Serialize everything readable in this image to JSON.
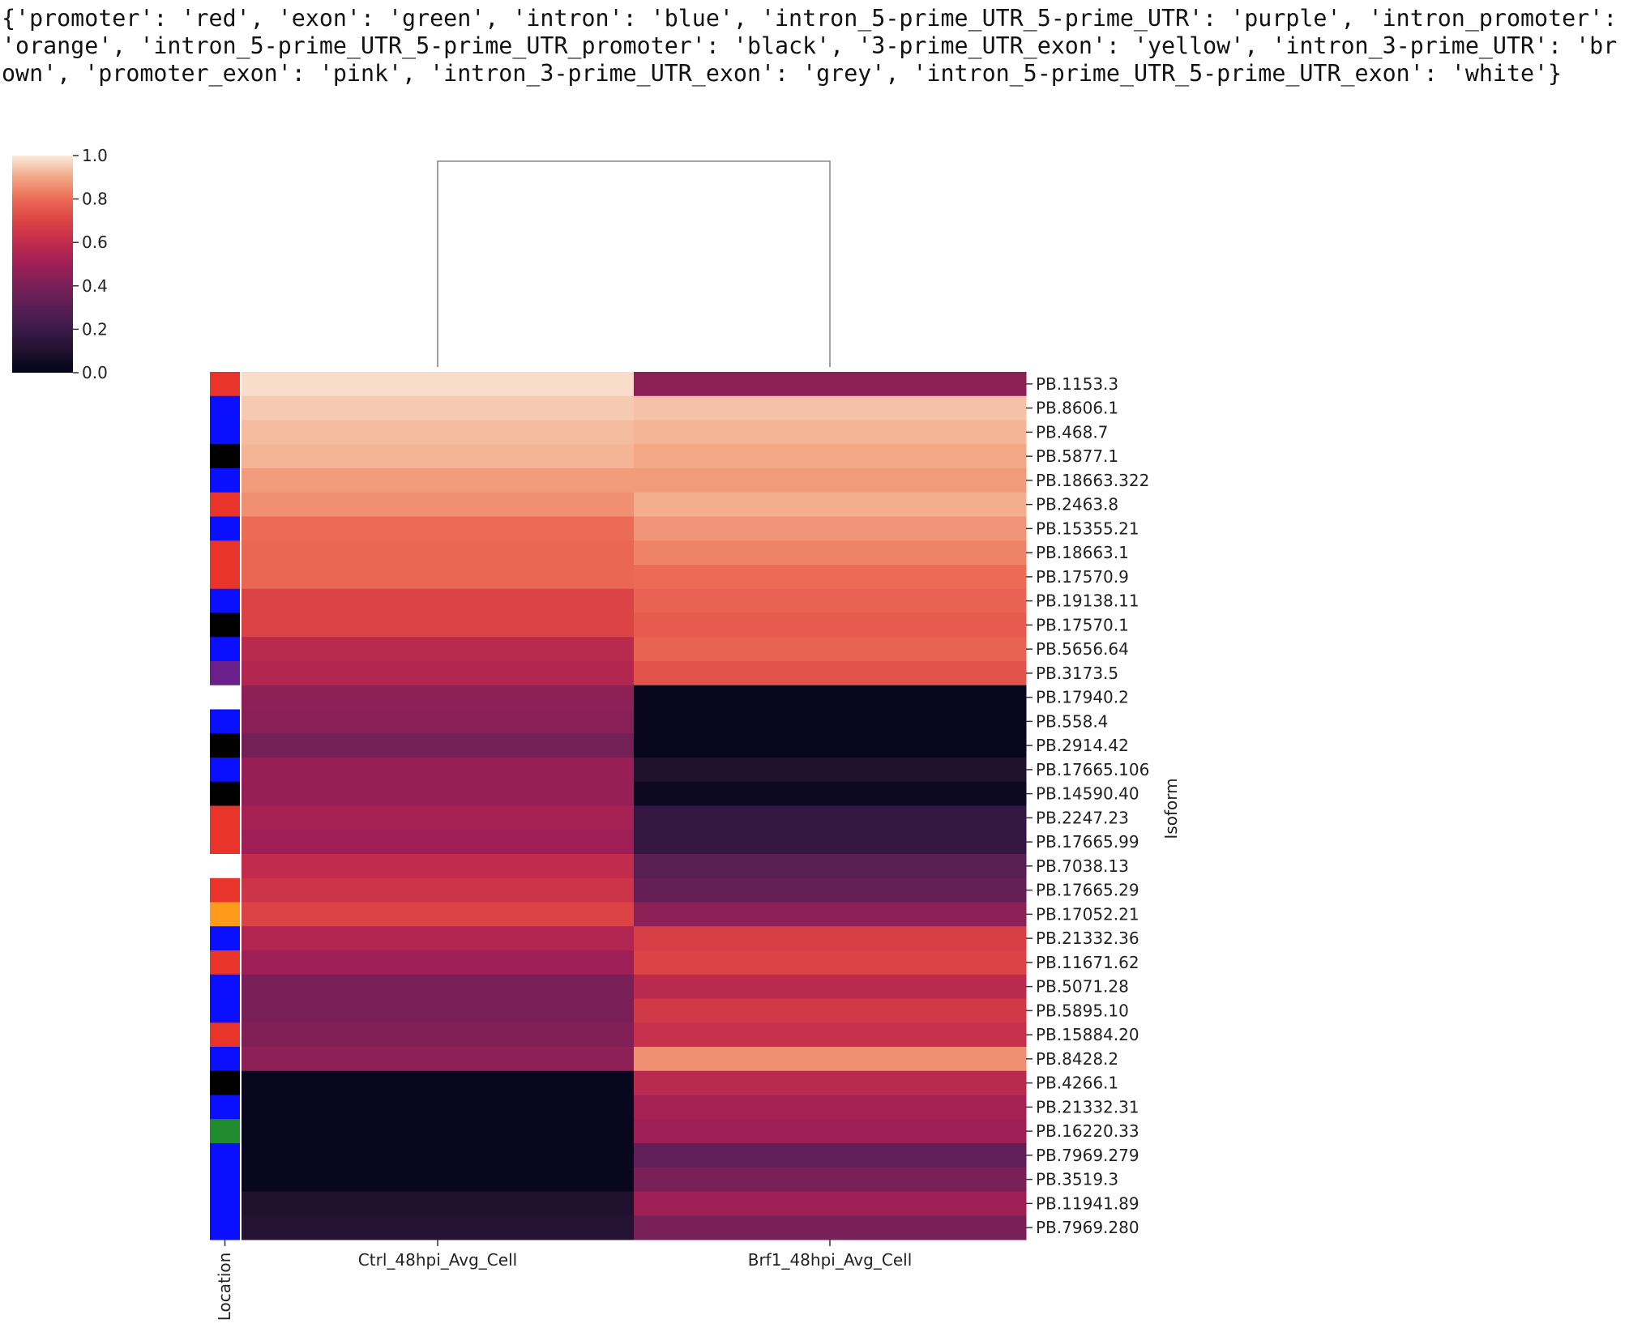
{
  "header_text": "{'promoter': 'red', 'exon': 'green', 'intron': 'blue', 'intron_5-prime_UTR_5-prime_UTR': 'purple', 'intron_promoter': 'orange', 'intron_5-prime_UTR_5-prime_UTR_promoter': 'black', '3-prime_UTR_exon': 'yellow', 'intron_3-prime_UTR': 'brown', 'promoter_exon': 'pink', 'intron_3-prime_UTR_exon': 'grey', 'intron_5-prime_UTR_5-prime_UTR_exon': 'white'}",
  "chart_data": {
    "type": "heatmap",
    "title": "",
    "xlabel": "",
    "ylabel": "Isoform",
    "row_annotation_label": "Location",
    "colormap": "rocket",
    "colorbar": {
      "range": [
        0.0,
        1.0
      ],
      "ticks": [
        "0.0",
        "0.2",
        "0.4",
        "0.6",
        "0.8",
        "1.0"
      ],
      "placement": "top-left"
    },
    "columns": [
      "Ctrl_48hpi_Avg_Cell",
      "Brf1_48hpi_Avg_Cell"
    ],
    "column_dendrogram": true,
    "location_colors": {
      "promoter": "red",
      "exon": "green",
      "intron": "blue",
      "intron_5-prime_UTR_5-prime_UTR": "purple",
      "intron_promoter": "orange",
      "intron_5-prime_UTR_5-prime_UTR_promoter": "black",
      "3-prime_UTR_exon": "yellow",
      "intron_3-prime_UTR": "brown",
      "promoter_exon": "pink",
      "intron_3-prime_UTR_exon": "grey",
      "intron_5-prime_UTR_5-prime_UTR_exon": "white"
    },
    "row_labels": [
      "PB.1153.3",
      "PB.8606.1",
      "PB.468.7",
      "PB.5877.1",
      "PB.18663.322",
      "PB.2463.8",
      "PB.15355.21",
      "PB.18663.1",
      "PB.17570.9",
      "PB.19138.11",
      "PB.17570.1",
      "PB.5656.64",
      "PB.3173.5",
      "PB.17940.2",
      "PB.558.4",
      "PB.2914.42",
      "PB.17665.106",
      "PB.14590.40",
      "PB.2247.23",
      "PB.17665.99",
      "PB.7038.13",
      "PB.17665.29",
      "PB.17052.21",
      "PB.21332.36",
      "PB.11671.62",
      "PB.5071.28",
      "PB.5895.10",
      "PB.15884.20",
      "PB.8428.2",
      "PB.4266.1",
      "PB.21332.31",
      "PB.16220.33",
      "PB.7969.279",
      "PB.3519.3",
      "PB.11941.89",
      "PB.7969.280"
    ],
    "row_location": [
      "promoter",
      "intron",
      "intron",
      "intron_5-prime_UTR_5-prime_UTR_promoter",
      "intron",
      "promoter",
      "intron",
      "promoter",
      "promoter",
      "intron",
      "intron_5-prime_UTR_5-prime_UTR_promoter",
      "intron",
      "intron_5-prime_UTR_5-prime_UTR",
      "intron_5-prime_UTR_5-prime_UTR_exon",
      "intron",
      "intron_5-prime_UTR_5-prime_UTR_promoter",
      "intron",
      "intron_5-prime_UTR_5-prime_UTR_promoter",
      "promoter",
      "promoter",
      "intron_5-prime_UTR_5-prime_UTR_exon",
      "promoter",
      "intron_promoter",
      "intron",
      "promoter",
      "intron",
      "intron",
      "promoter",
      "intron",
      "intron_5-prime_UTR_5-prime_UTR_promoter",
      "intron",
      "exon",
      "intron",
      "intron",
      "intron",
      "intron"
    ],
    "values": [
      [
        0.98,
        0.45
      ],
      [
        0.95,
        0.94
      ],
      [
        0.93,
        0.92
      ],
      [
        0.92,
        0.9
      ],
      [
        0.88,
        0.88
      ],
      [
        0.86,
        0.91
      ],
      [
        0.8,
        0.87
      ],
      [
        0.79,
        0.84
      ],
      [
        0.79,
        0.8
      ],
      [
        0.7,
        0.78
      ],
      [
        0.7,
        0.76
      ],
      [
        0.58,
        0.78
      ],
      [
        0.56,
        0.74
      ],
      [
        0.45,
        0.02
      ],
      [
        0.44,
        0.02
      ],
      [
        0.38,
        0.02
      ],
      [
        0.48,
        0.1
      ],
      [
        0.48,
        0.03
      ],
      [
        0.52,
        0.17
      ],
      [
        0.5,
        0.17
      ],
      [
        0.6,
        0.3
      ],
      [
        0.64,
        0.33
      ],
      [
        0.7,
        0.45
      ],
      [
        0.55,
        0.68
      ],
      [
        0.5,
        0.7
      ],
      [
        0.4,
        0.58
      ],
      [
        0.4,
        0.66
      ],
      [
        0.42,
        0.62
      ],
      [
        0.45,
        0.86
      ],
      [
        0.02,
        0.58
      ],
      [
        0.02,
        0.52
      ],
      [
        0.02,
        0.5
      ],
      [
        0.02,
        0.32
      ],
      [
        0.02,
        0.4
      ],
      [
        0.1,
        0.5
      ],
      [
        0.12,
        0.4
      ]
    ]
  }
}
